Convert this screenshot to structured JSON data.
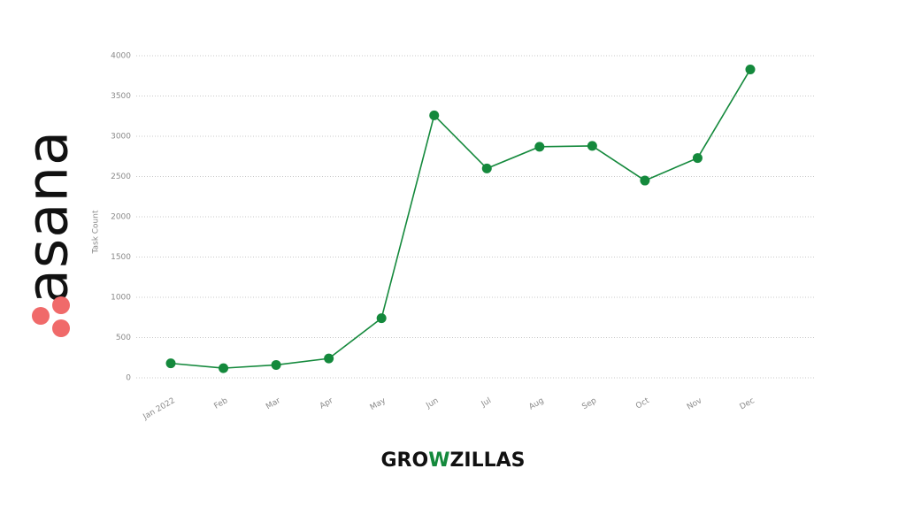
{
  "logo_text": "asana",
  "brand": [
    "GRO",
    "W",
    "ZILLAS"
  ],
  "chart_data": {
    "type": "line",
    "y_label": "Task Count",
    "categories": [
      "Jan 2022",
      "Feb",
      "Mar",
      "Apr",
      "May",
      "Jun",
      "Jul",
      "Aug",
      "Sep",
      "Oct",
      "Nov",
      "Dec"
    ],
    "series": [
      {
        "name": "Task Count",
        "color": "#14893c",
        "values": [
          180,
          120,
          160,
          240,
          740,
          3260,
          2600,
          2870,
          2880,
          2450,
          2730,
          3830
        ]
      }
    ],
    "ylim": [
      0,
      4000
    ],
    "yticks": [
      0,
      500,
      1000,
      1500,
      2000,
      2500,
      3000,
      3500,
      4000
    ],
    "grid": true
  }
}
